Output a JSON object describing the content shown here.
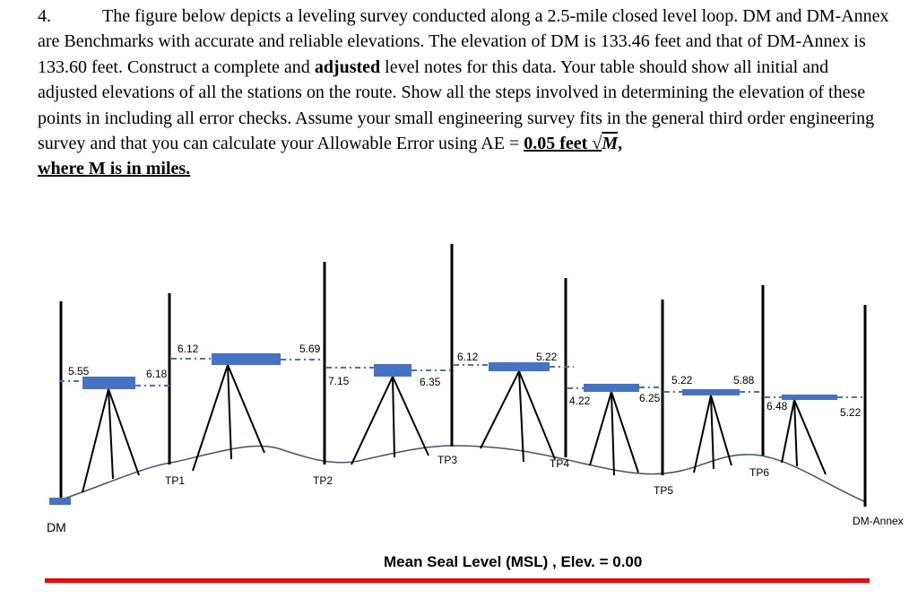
{
  "problem": {
    "number": "4.",
    "s1": "The figure below depicts a leveling survey conducted along a 2.5-mile closed level loop. DM and DM-Annex are Benchmarks with accurate and reliable elevations.  The elevation of DM is 133.46 feet and that of DM-Annex is 133.60 feet. Construct a complete and ",
    "adjusted": "adjusted",
    "s2": " level notes for this data. Your table should show all initial and adjusted elevations of all the stations on the route.  Show all the steps involved in determining the elevation of these points in including all error checks. Assume your small engineering survey fits in the general third order engineering survey and that you can calculate your Allowable Error using AE = ",
    "formula_value": "0.05 feet √",
    "formula_var": "M",
    "formula_end": ",",
    "where_line": "where M is in miles."
  },
  "diagram": {
    "stations": [
      "DM",
      "TP1",
      "TP2",
      "TP3",
      "TP4",
      "TP5",
      "TP6",
      "DM-Annex"
    ],
    "readings": [
      {
        "id": "bs-dm",
        "text": "5.55"
      },
      {
        "id": "fs-tp1",
        "text": "6.18"
      },
      {
        "id": "bs-tp1",
        "text": "6.12"
      },
      {
        "id": "fs-tp2",
        "text": "7.15"
      },
      {
        "id": "bs-tp2",
        "text": "5.69"
      },
      {
        "id": "fs-tp3",
        "text": "6.35"
      },
      {
        "id": "bs-tp3",
        "text": "6.12"
      },
      {
        "id": "fs-tp4",
        "text": "4.22"
      },
      {
        "id": "bs-tp4",
        "text": "5.22"
      },
      {
        "id": "fs-tp5",
        "text": "6.25"
      },
      {
        "id": "bs-tp5",
        "text": "5.22"
      },
      {
        "id": "fs-tp6",
        "text": "6.48"
      },
      {
        "id": "bs-tp6",
        "text": "5.88"
      },
      {
        "id": "fs-dmannex",
        "text": "5.22"
      }
    ],
    "datum_label": "Mean Seal Level (MSL) , Elev. = 0.00",
    "colors": {
      "instrument": "#4472C4",
      "ground": "#44546A",
      "sightline": "#4472C4",
      "datum": "#FF0000"
    }
  }
}
